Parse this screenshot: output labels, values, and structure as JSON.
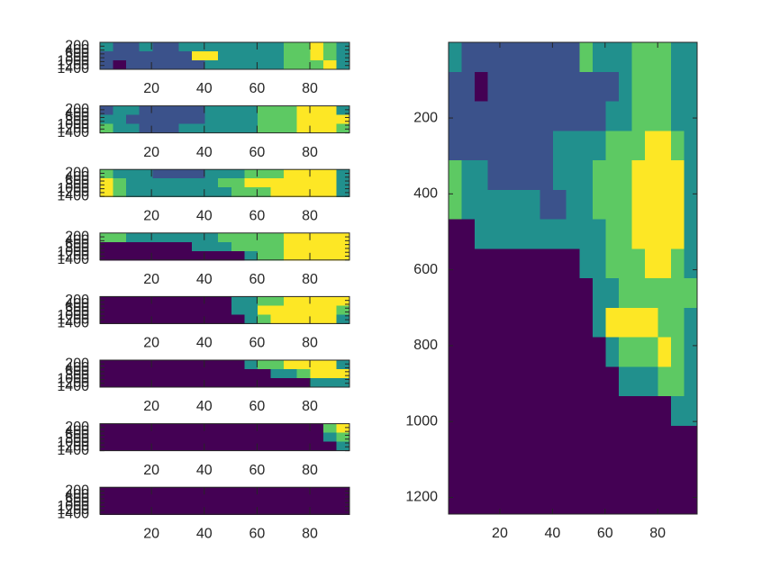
{
  "chart_data": [
    {
      "type": "heatmap",
      "xlim": [
        0.5,
        95
      ],
      "ylim": [
        0.5,
        1400
      ],
      "xticks": [
        20,
        40,
        60,
        80
      ],
      "yticks": [
        200,
        400,
        600,
        800,
        1000,
        1200,
        1400
      ],
      "clim": [
        0,
        4
      ],
      "colormap": [
        "#440154",
        "#3b528b",
        "#21908d",
        "#5dc963",
        "#fde725"
      ],
      "z": [
        [
          2,
          1,
          1,
          2,
          1,
          1,
          2,
          2,
          2,
          2,
          2,
          2,
          2,
          2,
          3,
          3,
          4,
          3,
          2
        ],
        [
          1,
          1,
          1,
          1,
          1,
          1,
          1,
          4,
          4,
          2,
          2,
          2,
          2,
          2,
          3,
          3,
          4,
          3,
          2
        ],
        [
          1,
          0,
          1,
          1,
          1,
          1,
          1,
          1,
          2,
          2,
          2,
          2,
          2,
          2,
          3,
          3,
          3,
          4,
          2
        ]
      ]
    },
    {
      "type": "heatmap",
      "xlim": [
        0.5,
        95
      ],
      "ylim": [
        0.5,
        1400
      ],
      "xticks": [
        20,
        40,
        60,
        80
      ],
      "yticks": [
        200,
        400,
        600,
        800,
        1000,
        1200,
        1400
      ],
      "clim": [
        0,
        4
      ],
      "colormap": [
        "#440154",
        "#3b528b",
        "#21908d",
        "#5dc963",
        "#fde725"
      ],
      "z": [
        [
          1,
          2,
          2,
          1,
          1,
          1,
          1,
          1,
          2,
          2,
          2,
          2,
          3,
          3,
          3,
          4,
          4,
          4,
          2
        ],
        [
          2,
          2,
          1,
          1,
          1,
          1,
          1,
          1,
          2,
          2,
          2,
          2,
          3,
          3,
          3,
          4,
          4,
          4,
          4
        ],
        [
          3,
          2,
          2,
          1,
          1,
          1,
          2,
          2,
          2,
          2,
          2,
          2,
          3,
          3,
          3,
          4,
          4,
          4,
          3
        ]
      ]
    },
    {
      "type": "heatmap",
      "xlim": [
        0.5,
        95
      ],
      "ylim": [
        0.5,
        1400
      ],
      "xticks": [
        20,
        40,
        60,
        80
      ],
      "yticks": [
        200,
        400,
        600,
        800,
        1000,
        1200,
        1400
      ],
      "clim": [
        0,
        4
      ],
      "colormap": [
        "#440154",
        "#3b528b",
        "#21908d",
        "#5dc963",
        "#fde725"
      ],
      "z": [
        [
          3,
          2,
          2,
          2,
          1,
          1,
          1,
          1,
          2,
          2,
          2,
          3,
          3,
          3,
          4,
          4,
          4,
          4,
          2
        ],
        [
          4,
          3,
          2,
          2,
          2,
          2,
          2,
          2,
          2,
          3,
          3,
          4,
          4,
          4,
          4,
          4,
          4,
          4,
          2
        ],
        [
          4,
          3,
          2,
          2,
          2,
          2,
          2,
          2,
          2,
          2,
          3,
          3,
          3,
          4,
          4,
          4,
          4,
          4,
          2
        ]
      ]
    },
    {
      "type": "heatmap",
      "xlim": [
        0.5,
        95
      ],
      "ylim": [
        0.5,
        1400
      ],
      "xticks": [
        20,
        40,
        60,
        80
      ],
      "yticks": [
        200,
        400,
        600,
        800,
        1000,
        1200,
        1400
      ],
      "clim": [
        0,
        4
      ],
      "colormap": [
        "#440154",
        "#3b528b",
        "#21908d",
        "#5dc963",
        "#fde725"
      ],
      "z": [
        [
          3,
          3,
          2,
          2,
          2,
          2,
          2,
          2,
          2,
          3,
          3,
          3,
          3,
          3,
          4,
          4,
          4,
          4,
          4
        ],
        [
          0,
          0,
          0,
          0,
          0,
          0,
          0,
          2,
          2,
          2,
          3,
          3,
          3,
          3,
          4,
          4,
          4,
          4,
          4
        ],
        [
          0,
          0,
          0,
          0,
          0,
          0,
          0,
          0,
          0,
          0,
          0,
          2,
          3,
          3,
          4,
          4,
          4,
          4,
          4
        ]
      ]
    },
    {
      "type": "heatmap",
      "xlim": [
        0.5,
        95
      ],
      "ylim": [
        0.5,
        1400
      ],
      "xticks": [
        20,
        40,
        60,
        80
      ],
      "yticks": [
        200,
        400,
        600,
        800,
        1000,
        1200,
        1400
      ],
      "clim": [
        0,
        4
      ],
      "colormap": [
        "#440154",
        "#3b528b",
        "#21908d",
        "#5dc963",
        "#fde725"
      ],
      "z": [
        [
          0,
          0,
          0,
          0,
          0,
          0,
          0,
          0,
          0,
          0,
          2,
          2,
          3,
          3,
          4,
          4,
          4,
          4,
          4
        ],
        [
          0,
          0,
          0,
          0,
          0,
          0,
          0,
          0,
          0,
          0,
          2,
          2,
          4,
          4,
          4,
          4,
          4,
          4,
          3
        ],
        [
          0,
          0,
          0,
          0,
          0,
          0,
          0,
          0,
          0,
          0,
          0,
          2,
          3,
          4,
          4,
          4,
          4,
          4,
          2
        ]
      ]
    },
    {
      "type": "heatmap",
      "xlim": [
        0.5,
        95
      ],
      "ylim": [
        0.5,
        1400
      ],
      "xticks": [
        20,
        40,
        60,
        80
      ],
      "yticks": [
        200,
        400,
        600,
        800,
        1000,
        1200,
        1400
      ],
      "clim": [
        0,
        4
      ],
      "colormap": [
        "#440154",
        "#3b528b",
        "#21908d",
        "#5dc963",
        "#fde725"
      ],
      "z": [
        [
          0,
          0,
          0,
          0,
          0,
          0,
          0,
          0,
          0,
          0,
          0,
          2,
          3,
          3,
          4,
          4,
          4,
          4,
          2
        ],
        [
          0,
          0,
          0,
          0,
          0,
          0,
          0,
          0,
          0,
          0,
          0,
          0,
          0,
          2,
          2,
          3,
          4,
          4,
          4
        ],
        [
          0,
          0,
          0,
          0,
          0,
          0,
          0,
          0,
          0,
          0,
          0,
          0,
          0,
          0,
          0,
          0,
          2,
          2,
          2
        ]
      ]
    },
    {
      "type": "heatmap",
      "xlim": [
        0.5,
        95
      ],
      "ylim": [
        0.5,
        1400
      ],
      "xticks": [
        20,
        40,
        60,
        80
      ],
      "yticks": [
        200,
        400,
        600,
        800,
        1000,
        1200,
        1400
      ],
      "clim": [
        0,
        4
      ],
      "colormap": [
        "#440154",
        "#3b528b",
        "#21908d",
        "#5dc963",
        "#fde725"
      ],
      "z": [
        [
          0,
          0,
          0,
          0,
          0,
          0,
          0,
          0,
          0,
          0,
          0,
          0,
          0,
          0,
          0,
          0,
          0,
          3,
          4
        ],
        [
          0,
          0,
          0,
          0,
          0,
          0,
          0,
          0,
          0,
          0,
          0,
          0,
          0,
          0,
          0,
          0,
          0,
          2,
          3
        ],
        [
          0,
          0,
          0,
          0,
          0,
          0,
          0,
          0,
          0,
          0,
          0,
          0,
          0,
          0,
          0,
          0,
          0,
          0,
          2
        ]
      ]
    },
    {
      "type": "heatmap",
      "xlim": [
        0.5,
        95
      ],
      "ylim": [
        0.5,
        1400
      ],
      "xticks": [
        20,
        40,
        60,
        80
      ],
      "yticks": [
        200,
        400,
        600,
        800,
        1000,
        1200,
        1400
      ],
      "clim": [
        0,
        4
      ],
      "colormap": [
        "#440154",
        "#3b528b",
        "#21908d",
        "#5dc963",
        "#fde725"
      ],
      "z": [
        [
          0,
          0,
          0,
          0,
          0,
          0,
          0,
          0,
          0,
          0,
          0,
          0,
          0,
          0,
          0,
          0,
          0,
          0,
          0
        ],
        [
          0,
          0,
          0,
          0,
          0,
          0,
          0,
          0,
          0,
          0,
          0,
          0,
          0,
          0,
          0,
          0,
          0,
          0,
          0
        ],
        [
          0,
          0,
          0,
          0,
          0,
          0,
          0,
          0,
          0,
          0,
          0,
          0,
          0,
          0,
          0,
          0,
          0,
          0,
          0
        ]
      ]
    },
    {
      "type": "heatmap",
      "xlim": [
        0.5,
        95
      ],
      "ylim": [
        0.5,
        1244
      ],
      "xticks": [
        20,
        40,
        60,
        80
      ],
      "yticks": [
        200,
        400,
        600,
        800,
        1000,
        1200
      ],
      "clim": [
        0,
        4
      ],
      "colormap": [
        "#440154",
        "#3b528b",
        "#21908d",
        "#5dc963",
        "#fde725"
      ],
      "z": [
        [
          2,
          1,
          1,
          1,
          1,
          1,
          1,
          1,
          1,
          1,
          3,
          2,
          2,
          2,
          3,
          3,
          3,
          2,
          2
        ],
        [
          1,
          1,
          0,
          1,
          1,
          1,
          1,
          1,
          1,
          1,
          1,
          1,
          1,
          2,
          3,
          3,
          3,
          2,
          2
        ],
        [
          1,
          1,
          1,
          1,
          1,
          1,
          1,
          1,
          1,
          1,
          1,
          1,
          2,
          2,
          3,
          3,
          3,
          2,
          2
        ],
        [
          1,
          1,
          1,
          1,
          1,
          1,
          1,
          1,
          2,
          2,
          2,
          2,
          3,
          3,
          3,
          4,
          4,
          3,
          2
        ],
        [
          3,
          2,
          2,
          1,
          1,
          1,
          1,
          1,
          2,
          2,
          2,
          3,
          3,
          3,
          4,
          4,
          4,
          4,
          2
        ],
        [
          3,
          2,
          2,
          2,
          2,
          2,
          2,
          1,
          1,
          2,
          2,
          3,
          3,
          3,
          4,
          4,
          4,
          4,
          2
        ],
        [
          0,
          0,
          2,
          2,
          2,
          2,
          2,
          2,
          2,
          2,
          2,
          2,
          3,
          3,
          4,
          4,
          4,
          4,
          2
        ],
        [
          0,
          0,
          0,
          0,
          0,
          0,
          0,
          0,
          0,
          0,
          2,
          2,
          3,
          3,
          3,
          4,
          4,
          3,
          2
        ],
        [
          0,
          0,
          0,
          0,
          0,
          0,
          0,
          0,
          0,
          0,
          0,
          2,
          2,
          3,
          3,
          3,
          3,
          3,
          3
        ],
        [
          0,
          0,
          0,
          0,
          0,
          0,
          0,
          0,
          0,
          0,
          0,
          2,
          4,
          4,
          4,
          4,
          3,
          3,
          2
        ],
        [
          0,
          0,
          0,
          0,
          0,
          0,
          0,
          0,
          0,
          0,
          0,
          0,
          2,
          3,
          3,
          3,
          4,
          3,
          2
        ],
        [
          0,
          0,
          0,
          0,
          0,
          0,
          0,
          0,
          0,
          0,
          0,
          0,
          0,
          2,
          2,
          2,
          3,
          3,
          2
        ],
        [
          0,
          0,
          0,
          0,
          0,
          0,
          0,
          0,
          0,
          0,
          0,
          0,
          0,
          0,
          0,
          0,
          0,
          2,
          2
        ],
        [
          0,
          0,
          0,
          0,
          0,
          0,
          0,
          0,
          0,
          0,
          0,
          0,
          0,
          0,
          0,
          0,
          0,
          0,
          0
        ],
        [
          0,
          0,
          0,
          0,
          0,
          0,
          0,
          0,
          0,
          0,
          0,
          0,
          0,
          0,
          0,
          0,
          0,
          0,
          0
        ],
        [
          0,
          0,
          0,
          0,
          0,
          0,
          0,
          0,
          0,
          0,
          0,
          0,
          0,
          0,
          0,
          0,
          0,
          0,
          0
        ]
      ]
    }
  ]
}
